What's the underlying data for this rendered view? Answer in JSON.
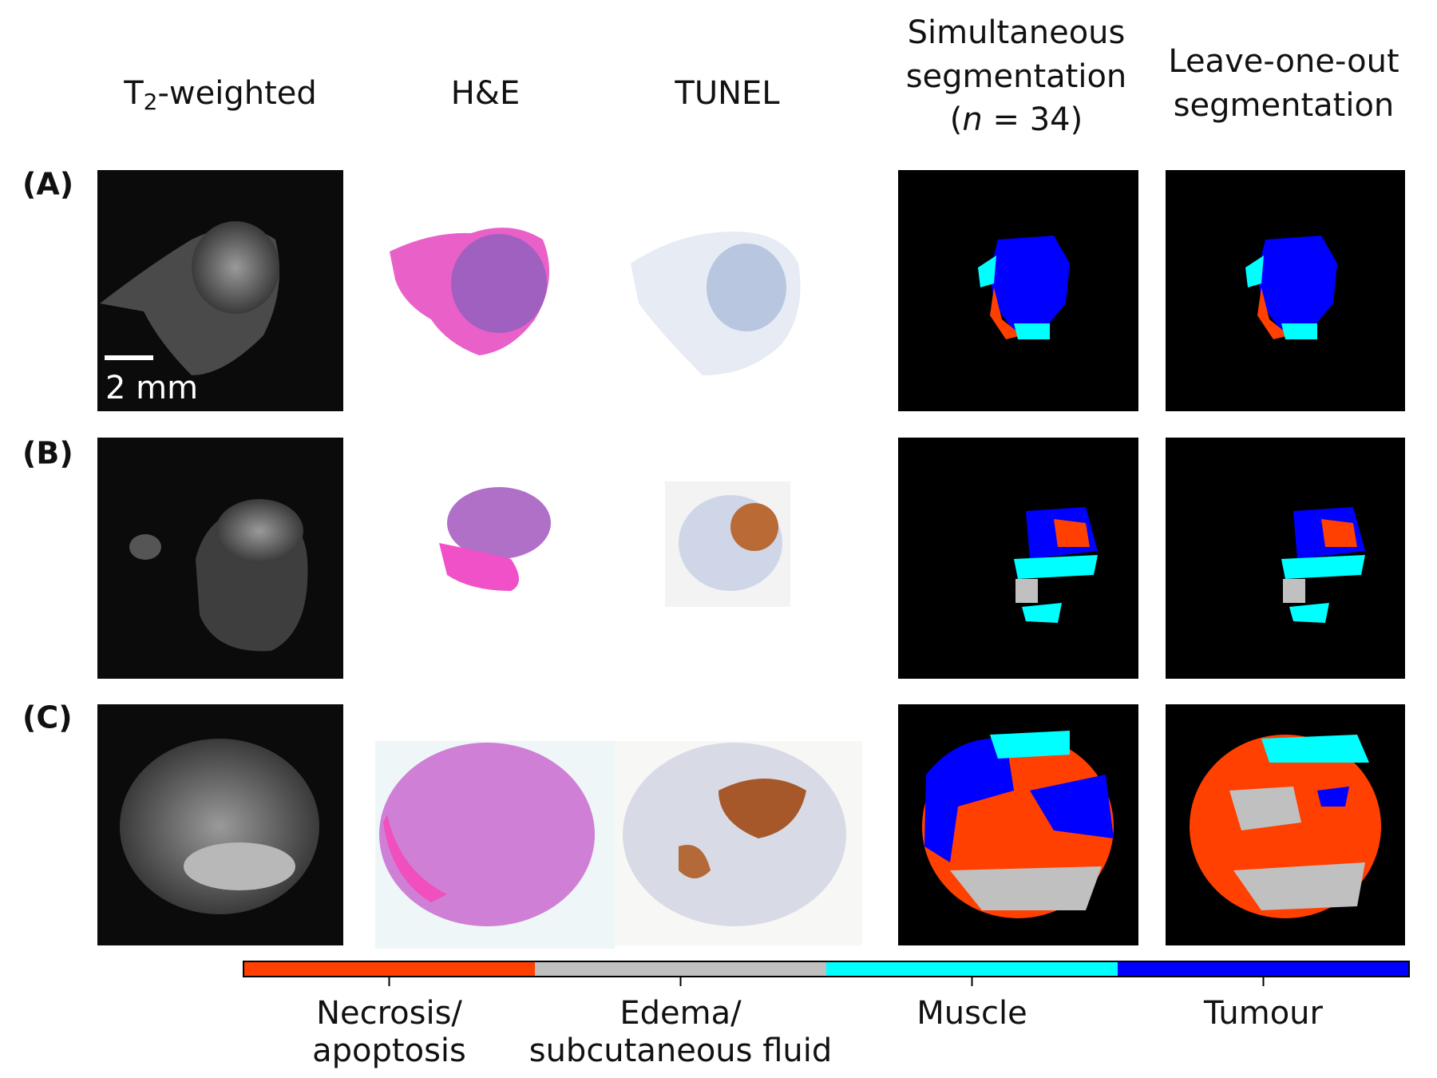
{
  "columns": [
    {
      "main": "T",
      "sub": "2",
      "rest": "-weighted"
    },
    {
      "lines": [
        "H&E"
      ]
    },
    {
      "lines": [
        "TUNEL"
      ]
    },
    {
      "lines": [
        "Simultaneous",
        "segmentation"
      ],
      "note": {
        "before": "(",
        "italic": "n",
        "after": " = 34)"
      }
    },
    {
      "lines": [
        "Leave-one-out",
        "segmentation"
      ]
    }
  ],
  "rows": [
    "(A)",
    "(B)",
    "(C)"
  ],
  "scale_bar": "2 mm",
  "classes": [
    {
      "label_lines": [
        "Necrosis/",
        "apoptosis"
      ],
      "color": "#ff4000"
    },
    {
      "label_lines": [
        "Edema/",
        "subcutaneous fluid"
      ],
      "color": "#c0c0c0"
    },
    {
      "label_lines": [
        "Muscle"
      ],
      "color": "#00ffff"
    },
    {
      "label_lines": [
        "Tumour"
      ],
      "color": "#0000ff"
    }
  ]
}
